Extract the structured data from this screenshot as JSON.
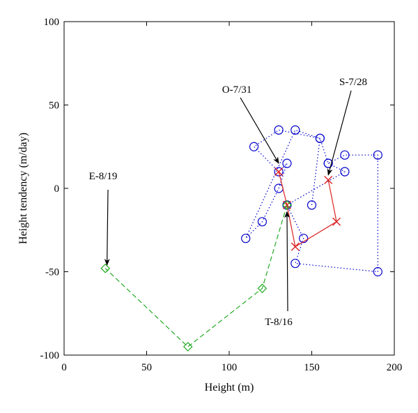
{
  "chart_data": {
    "type": "scatter",
    "xlabel": "Height (m)",
    "ylabel": "Height tendency (m/day)",
    "xlim": [
      0,
      200
    ],
    "ylim": [
      -100,
      100
    ],
    "xticks": [
      0,
      50,
      100,
      150,
      200
    ],
    "yticks": [
      -100,
      -50,
      0,
      50,
      100
    ],
    "grid": false,
    "series": [
      {
        "marker": "circle",
        "line": "dotted",
        "color": "#0000cc",
        "x": [
          150,
          155,
          140,
          110,
          120,
          130,
          135,
          130,
          115,
          130,
          155,
          160,
          170,
          190,
          190,
          140,
          145,
          135,
          170,
          160
        ],
        "y": [
          -10,
          30,
          35,
          -30,
          -20,
          0,
          15,
          10,
          25,
          35,
          30,
          15,
          20,
          20,
          -50,
          -45,
          -30,
          -10,
          10,
          15
        ]
      },
      {
        "marker": "x",
        "line": "solid",
        "color": "#dd2222",
        "x": [
          160,
          165,
          140,
          135,
          130
        ],
        "y": [
          5,
          -20,
          -35,
          -10,
          10
        ]
      },
      {
        "marker": "diamond",
        "line": "dashed",
        "color": "#22aa22",
        "x": [
          135,
          120,
          75,
          25
        ],
        "y": [
          -10,
          -60,
          -95,
          -48
        ]
      }
    ],
    "annotations": [
      {
        "text": "O-7/31",
        "point": [
          130,
          15
        ]
      },
      {
        "text": "S-7/28",
        "point": [
          160,
          8
        ]
      },
      {
        "text": "E-8/19",
        "point": [
          26,
          -46
        ]
      },
      {
        "text": "T-8/16",
        "point": [
          135,
          -14
        ]
      }
    ]
  }
}
